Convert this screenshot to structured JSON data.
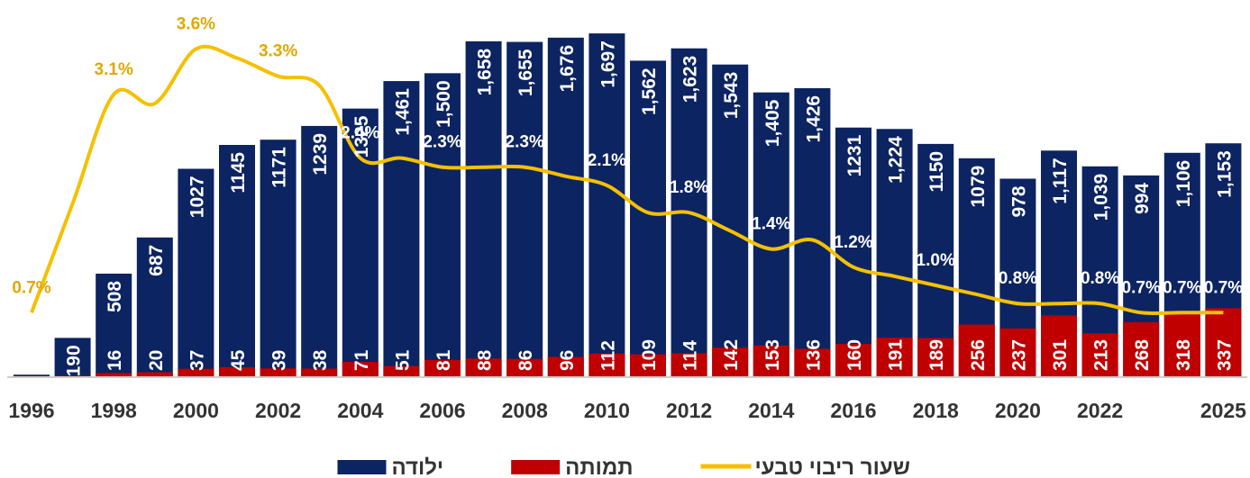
{
  "chart_data": {
    "type": "bar",
    "categories": [
      1996,
      null,
      1998,
      null,
      2000,
      null,
      2002,
      null,
      2004,
      null,
      2006,
      null,
      2008,
      null,
      2010,
      null,
      2012,
      null,
      2014,
      null,
      2016,
      null,
      2018,
      null,
      2020,
      null,
      2022,
      null,
      null,
      2025
    ],
    "ylim": [
      0,
      1800
    ],
    "y2lim": [
      0,
      4
    ],
    "series": [
      {
        "name": "ילודה",
        "color": "#0c2461",
        "values": [
          8,
          190,
          508,
          687,
          1027,
          1145,
          1171,
          1239,
          1325,
          1461,
          1500,
          1658,
          1655,
          1676,
          1697,
          1562,
          1623,
          1543,
          1405,
          1426,
          1231,
          1224,
          1150,
          1079,
          978,
          1117,
          1039,
          994,
          1106,
          1153
        ],
        "value_labels": [
          null,
          "190",
          "508",
          "687",
          "1027",
          "1145",
          "1171",
          "1239",
          "1325",
          "1,461",
          "1,500",
          "1,658",
          "1,655",
          "1,676",
          "1,697",
          "1,562",
          "1,623",
          "1,543",
          "1,405",
          "1,426",
          "1231",
          "1,224",
          "1150",
          "1079",
          "978",
          "1,117",
          "1,039",
          "994",
          "1,106",
          "1,153"
        ]
      },
      {
        "name": "תמותה",
        "color": "#c00000",
        "values": [
          2,
          3,
          16,
          20,
          37,
          45,
          39,
          38,
          71,
          51,
          81,
          88,
          86,
          96,
          112,
          109,
          114,
          142,
          153,
          136,
          160,
          191,
          189,
          256,
          237,
          301,
          213,
          268,
          318,
          337
        ],
        "value_labels": [
          null,
          null,
          "16",
          "20",
          "37",
          "45",
          "39",
          "38",
          "71",
          "51",
          "81",
          "88",
          "86",
          "96",
          "112",
          "109",
          "114",
          "142",
          "153",
          "136",
          "160",
          "191",
          "189",
          "256",
          "237",
          "301",
          "213",
          "268",
          "318",
          "337"
        ]
      },
      {
        "name": "שעור ריבוי טבעי",
        "color": "#f5c000",
        "type": "line",
        "axis": "y2",
        "values": [
          0.7,
          1.9,
          3.1,
          3.0,
          3.6,
          3.5,
          3.3,
          3.2,
          2.4,
          2.4,
          2.3,
          2.3,
          2.3,
          2.2,
          2.1,
          1.8,
          1.8,
          1.6,
          1.4,
          1.5,
          1.2,
          1.1,
          1.0,
          0.9,
          0.8,
          0.8,
          0.8,
          0.7,
          0.7,
          0.7
        ],
        "value_labels": [
          "0.7%",
          null,
          "3.1%",
          null,
          "3.6%",
          null,
          "3.3%",
          null,
          "2.4%",
          null,
          "2.3%",
          null,
          "2.3%",
          null,
          "2.1%",
          null,
          "1.8%",
          null,
          "1.4%",
          null,
          "1.2%",
          null,
          "1.0%",
          null,
          "0.8%",
          null,
          "0.8%",
          "0.7%",
          "0.7%",
          "0.7%"
        ]
      }
    ]
  }
}
